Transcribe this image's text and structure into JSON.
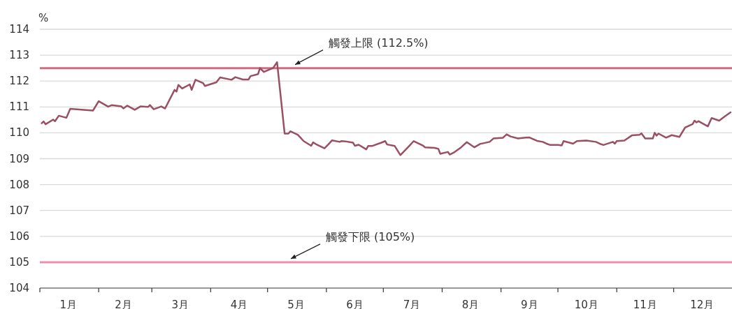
{
  "chart_data": {
    "type": "line",
    "ylabel": "%",
    "x": [
      "--01-02",
      "--01-03",
      "--01-04",
      "--01-08",
      "--01-09",
      "--01-11",
      "--01-15",
      "--01-17",
      "--01-29",
      "--02-01",
      "--02-06",
      "--02-08",
      "--02-13",
      "--02-14",
      "--02-16",
      "--02-20",
      "--02-23",
      "--02-27",
      "--02-28",
      "--03-02",
      "--03-06",
      "--03-08",
      "--03-13",
      "--03-14",
      "--03-15",
      "--03-17",
      "--03-21",
      "--03-22",
      "--03-24",
      "--03-28",
      "--03-29",
      "--04-04",
      "--04-06",
      "--04-12",
      "--04-14",
      "--04-18",
      "--04-21",
      "--04-22",
      "--04-26",
      "--04-27",
      "--04-29",
      "--05-04",
      "--05-06",
      "--05-10",
      "--05-12",
      "--05-13",
      "--05-17",
      "--05-20",
      "--05-24",
      "--05-25",
      "--05-27",
      "--05-31",
      "--06-02",
      "--06-04",
      "--06-08",
      "--06-09",
      "--06-11",
      "--06-15",
      "--06-16",
      "--06-18",
      "--06-22",
      "--06-23",
      "--06-25",
      "--06-30",
      "--07-02",
      "--07-03",
      "--07-07",
      "--07-10",
      "--07-14",
      "--07-17",
      "--07-22",
      "--07-23",
      "--07-28",
      "--07-30",
      "--07-31",
      "--08-04",
      "--08-05",
      "--08-07",
      "--08-11",
      "--08-14",
      "--08-18",
      "--08-21",
      "--08-26",
      "--08-28",
      "--09-02",
      "--09-04",
      "--09-06",
      "--09-10",
      "--09-13",
      "--09-16",
      "--09-20",
      "--09-23",
      "--09-25",
      "--09-27",
      "--10-01",
      "--10-03",
      "--10-04",
      "--10-09",
      "--10-11",
      "--10-16",
      "--10-21",
      "--10-23",
      "--10-25",
      "--10-30",
      "--10-31",
      "--11-01",
      "--11-05",
      "--11-09",
      "--11-13",
      "--11-14",
      "--11-16",
      "--11-20",
      "--11-21",
      "--11-22",
      "--11-23",
      "--11-27",
      "--11-30",
      "--12-04",
      "--12-07",
      "--12-11",
      "--12-12",
      "--12-13",
      "--12-14",
      "--12-19",
      "--12-21",
      "--12-25",
      "--12-28",
      "--12-31"
    ],
    "series": [
      {
        "color": "#9b4f63",
        "values": [
          110.37,
          110.44,
          110.33,
          110.51,
          110.45,
          110.66,
          110.58,
          110.93,
          110.86,
          111.22,
          111.01,
          111.07,
          111.02,
          110.94,
          111.05,
          110.89,
          111.02,
          111.0,
          111.07,
          110.91,
          111.02,
          110.94,
          111.66,
          111.59,
          111.85,
          111.71,
          111.87,
          111.66,
          112.05,
          111.92,
          111.81,
          111.95,
          112.14,
          112.05,
          112.15,
          112.06,
          112.06,
          112.19,
          112.27,
          112.5,
          112.35,
          112.51,
          112.73,
          109.97,
          109.97,
          110.06,
          109.92,
          109.68,
          109.5,
          109.63,
          109.54,
          109.4,
          109.55,
          109.71,
          109.65,
          109.68,
          109.67,
          109.62,
          109.5,
          109.54,
          109.36,
          109.49,
          109.49,
          109.62,
          109.68,
          109.55,
          109.49,
          109.14,
          109.44,
          109.68,
          109.5,
          109.44,
          109.42,
          109.38,
          109.19,
          109.26,
          109.16,
          109.23,
          109.44,
          109.64,
          109.44,
          109.57,
          109.65,
          109.78,
          109.81,
          109.94,
          109.86,
          109.78,
          109.81,
          109.82,
          109.69,
          109.65,
          109.58,
          109.53,
          109.53,
          109.51,
          109.68,
          109.58,
          109.68,
          109.7,
          109.65,
          109.58,
          109.53,
          109.65,
          109.58,
          109.68,
          109.7,
          109.9,
          109.92,
          109.98,
          109.78,
          109.78,
          110.0,
          109.89,
          109.97,
          109.81,
          109.91,
          109.84,
          110.2,
          110.34,
          110.47,
          110.4,
          110.45,
          110.25,
          110.57,
          110.47,
          110.64,
          110.79
        ]
      }
    ],
    "xlim": [
      "--01-01",
      "--12-31"
    ],
    "xticks": [
      {
        "value": "--01-01",
        "label": null
      },
      {
        "value": "--01-16",
        "label": "1月"
      },
      {
        "value": "--02-01",
        "label": null
      },
      {
        "value": "--02-14",
        "label": "2月"
      },
      {
        "value": "--03-01",
        "label": null
      },
      {
        "value": "--03-16",
        "label": "3月"
      },
      {
        "value": "--04-01",
        "label": null
      },
      {
        "value": "--04-16",
        "label": "4月"
      },
      {
        "value": "--05-01",
        "label": null
      },
      {
        "value": "--05-16",
        "label": "5月"
      },
      {
        "value": "--06-01",
        "label": null
      },
      {
        "value": "--06-16",
        "label": "6月"
      },
      {
        "value": "--07-01",
        "label": null
      },
      {
        "value": "--07-16",
        "label": "7月"
      },
      {
        "value": "--08-01",
        "label": null
      },
      {
        "value": "--08-16",
        "label": "8月"
      },
      {
        "value": "--09-01",
        "label": null
      },
      {
        "value": "--09-16",
        "label": "9月"
      },
      {
        "value": "--10-01",
        "label": null
      },
      {
        "value": "--10-16",
        "label": "10月"
      },
      {
        "value": "--11-01",
        "label": null
      },
      {
        "value": "--11-16",
        "label": "11月"
      },
      {
        "value": "--12-01",
        "label": null
      },
      {
        "value": "--12-16",
        "label": "12月"
      }
    ],
    "ylim": [
      104,
      114
    ],
    "yticks": [
      104,
      105,
      106,
      107,
      108,
      109,
      110,
      111,
      112,
      113,
      114
    ],
    "grid": "y",
    "marker": "none",
    "line_style": "solid",
    "ref_lines": [
      {
        "axis": "y",
        "value": 112.5,
        "label": "觸發上限 (112.5%)",
        "color": "#d06b80"
      },
      {
        "axis": "y",
        "value": 105,
        "label": "觸發下限 (105%)",
        "color": "#ec8fae"
      }
    ]
  }
}
